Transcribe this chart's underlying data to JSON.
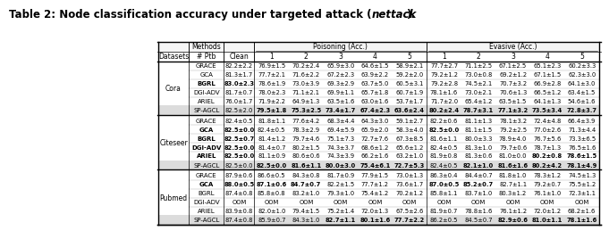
{
  "title_parts": [
    {
      "text": "Table 2: Node classification accuracy under targeted attack (",
      "style": "bold"
    },
    {
      "text": "nettack",
      "style": "bold_italic"
    },
    {
      "text": ").",
      "style": "bold"
    }
  ],
  "col_labels": [
    "Datasets",
    "# Ptb",
    "Clean",
    "1",
    "2",
    "3",
    "4",
    "5",
    "1",
    "2",
    "3",
    "4",
    "5"
  ],
  "poisoning_label": "Poisoning (Acc.)",
  "evasive_label": "Evasive (Acc.)",
  "methods_label": "Methods",
  "datasets": [
    {
      "name": "Cora",
      "rows": [
        {
          "method": "GRACE",
          "bold_method": false,
          "values": [
            "82.2±2.2",
            "76.9±1.5",
            "70.2±2.4",
            "65.9±3.0",
            "64.6±1.5",
            "58.9±2.1",
            "77.7±2.7",
            "71.1±2.5",
            "67.1±2.5",
            "65.1±2.3",
            "60.2±3.3"
          ],
          "bold_vals": []
        },
        {
          "method": "GCA",
          "bold_method": false,
          "values": [
            "81.3±1.7",
            "77.7±2.1",
            "71.6±2.2",
            "67.2±2.3",
            "63.9±2.2",
            "59.2±2.0",
            "79.2±1.2",
            "73.0±0.8",
            "69.2±1.2",
            "67.1±1.5",
            "62.3±3.0"
          ],
          "bold_vals": []
        },
        {
          "method": "BGRL",
          "bold_method": true,
          "values": [
            "83.0±2.3",
            "78.6±1.9",
            "73.0±3.9",
            "69.3±2.9",
            "63.7±5.0",
            "60.5±3.1",
            "79.2±2.8",
            "74.5±2.1",
            "70.7±3.2",
            "66.9±2.8",
            "64.1±3.0"
          ],
          "bold_vals": [
            0
          ]
        },
        {
          "method": "DGI-ADV",
          "bold_method": false,
          "values": [
            "81.7±0.7",
            "78.0±2.3",
            "71.1±2.1",
            "69.9±1.1",
            "65.7±1.8",
            "60.7±1.9",
            "78.1±1.6",
            "73.0±2.1",
            "70.6±1.3",
            "66.5±1.2",
            "63.4±1.5"
          ],
          "bold_vals": []
        },
        {
          "method": "ARIEL",
          "bold_method": false,
          "values": [
            "76.0±1.7",
            "71.9±2.2",
            "64.9±1.3",
            "63.5±1.6",
            "63.0±1.6",
            "53.7±1.7",
            "71.7±2.0",
            "65.4±1.2",
            "63.5±1.5",
            "64.1±1.3",
            "54.6±1.6"
          ],
          "bold_vals": []
        }
      ],
      "sp_row": {
        "method": "SP-AGCL",
        "values": [
          "82.5±2.0",
          "79.5±1.8",
          "75.3±2.5",
          "73.4±1.7",
          "67.4±2.3",
          "63.6±2.4",
          "80.2±2.4",
          "78.7±3.1",
          "77.1±3.2",
          "73.5±3.4",
          "72.8±3.7"
        ],
        "bold_vals": [
          1,
          2,
          3,
          4,
          5,
          6,
          7,
          8,
          9,
          10
        ]
      }
    },
    {
      "name": "Citeseer",
      "rows": [
        {
          "method": "GRACE",
          "bold_method": false,
          "values": [
            "82.4±0.5",
            "81.8±1.1",
            "77.6±4.2",
            "68.3±4.4",
            "64.3±3.0",
            "59.1±2.7",
            "82.2±0.6",
            "81.1±1.3",
            "78.1±3.2",
            "72.4±4.8",
            "66.4±3.9"
          ],
          "bold_vals": []
        },
        {
          "method": "GCA",
          "bold_method": true,
          "values": [
            "82.5±0.0",
            "82.4±0.5",
            "78.3±2.9",
            "69.4±5.9",
            "65.9±2.0",
            "58.3±4.0",
            "82.5±0.0",
            "81.1±1.5",
            "79.2±2.5",
            "77.0±2.6",
            "71.3±4.4"
          ],
          "bold_vals": [
            0,
            6
          ]
        },
        {
          "method": "BGRL",
          "bold_method": true,
          "values": [
            "82.5±0.7",
            "81.4±1.2",
            "79.7±4.6",
            "75.1±7.3",
            "72.7±7.6",
            "67.3±8.5",
            "81.6±1.1",
            "80.0±3.3",
            "78.9±4.0",
            "76.7±5.6",
            "73.3±6.5"
          ],
          "bold_vals": [
            0
          ]
        },
        {
          "method": "DGI-ADV",
          "bold_method": true,
          "values": [
            "82.5±0.0",
            "81.4±0.7",
            "80.2±1.5",
            "74.3±3.7",
            "68.6±1.2",
            "65.6±1.2",
            "82.4±0.5",
            "81.3±1.0",
            "79.7±0.6",
            "78.7±1.3",
            "76.5±1.6"
          ],
          "bold_vals": [
            0
          ]
        },
        {
          "method": "ARIEL",
          "bold_method": true,
          "values": [
            "82.5±0.0",
            "81.1±0.9",
            "80.6±0.6",
            "74.3±3.9",
            "66.2±1.6",
            "63.2±1.0",
            "81.9±0.8",
            "81.3±0.6",
            "81.0±0.0",
            "80.2±0.8",
            "78.6±1.5"
          ],
          "bold_vals": [
            0,
            9,
            10
          ]
        }
      ],
      "sp_row": {
        "method": "SP-AGCL",
        "values": [
          "82.5±0.0",
          "82.5±0.0",
          "81.6±1.1",
          "80.0±3.0",
          "75.4±6.1",
          "72.7±5.3",
          "82.4±0.5",
          "82.1±1.0",
          "81.6±1.6",
          "80.2±4.2",
          "78.1±4.9"
        ],
        "bold_vals": [
          1,
          2,
          3,
          4,
          5,
          7,
          8,
          9,
          10
        ]
      }
    },
    {
      "name": "Pubmed",
      "rows": [
        {
          "method": "GRACE",
          "bold_method": false,
          "values": [
            "87.9±0.6",
            "86.6±0.5",
            "84.3±0.8",
            "81.7±0.9",
            "77.9±1.5",
            "73.0±1.3",
            "86.3±0.4",
            "84.4±0.7",
            "81.8±1.0",
            "78.3±1.2",
            "74.5±1.3"
          ],
          "bold_vals": []
        },
        {
          "method": "GCA",
          "bold_method": true,
          "values": [
            "88.0±0.5",
            "87.1±0.6",
            "84.7±0.7",
            "82.2±1.5",
            "77.7±1.2",
            "73.6±1.7",
            "87.0±0.5",
            "85.2±0.7",
            "82.7±1.1",
            "79.2±0.7",
            "75.5±1.2"
          ],
          "bold_vals": [
            0,
            1,
            2,
            6,
            7
          ]
        },
        {
          "method": "BGRL",
          "bold_method": false,
          "values": [
            "87.4±0.8",
            "85.8±0.8",
            "83.2±1.0",
            "79.3±1.0",
            "75.4±1.2",
            "70.2±1.2",
            "85.8±1.1",
            "83.7±1.0",
            "80.3±1.2",
            "76.1±1.0",
            "72.3±1.1"
          ],
          "bold_vals": []
        },
        {
          "method": "DGI-ADV",
          "bold_method": false,
          "values": [
            "OOM",
            "OOM",
            "OOM",
            "OOM",
            "OOM",
            "OOM",
            "OOM",
            "OOM",
            "OOM",
            "OOM",
            "OOM"
          ],
          "bold_vals": []
        },
        {
          "method": "ARIEL",
          "bold_method": false,
          "values": [
            "83.9±0.8",
            "82.0±1.0",
            "79.4±1.5",
            "75.2±1.4",
            "72.0±1.3",
            "67.5±2.6",
            "81.9±0.7",
            "78.8±1.6",
            "76.1±1.2",
            "72.0±1.2",
            "68.2±1.6"
          ],
          "bold_vals": []
        }
      ],
      "sp_row": {
        "method": "SP-AGCL",
        "values": [
          "87.4±0.8",
          "85.9±0.7",
          "84.3±1.0",
          "82.7±1.1",
          "80.1±1.6",
          "77.7±2.2",
          "86.2±0.5",
          "84.5±0.7",
          "82.9±0.6",
          "81.0±1.1",
          "78.1±1.6"
        ],
        "bold_vals": [
          3,
          4,
          5,
          8,
          9,
          10
        ]
      }
    }
  ]
}
